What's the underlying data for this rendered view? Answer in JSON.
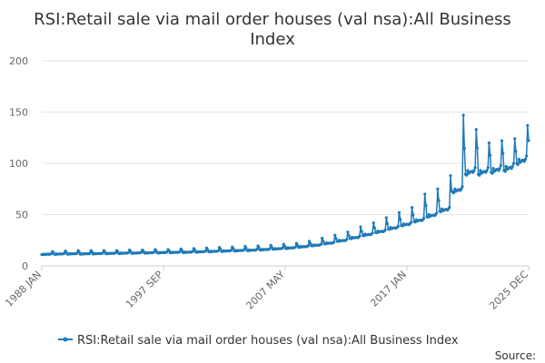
{
  "chart_data": {
    "type": "line",
    "title_line1": "RSI:Retail sale via mail order houses (val nsa):All Business",
    "title_line2": "Index",
    "source": "Source:",
    "y_ticks": [
      "0",
      "50",
      "100",
      "150",
      "200"
    ],
    "ylim": [
      0,
      200
    ],
    "x_ticks": [
      "1988 JAN",
      "1997 SEP",
      "2007 MAY",
      "2017 JAN",
      "2025 DEC"
    ],
    "x_range": [
      "1988-01",
      "2025-12"
    ],
    "grid": true,
    "legend_position": "bottom",
    "colors": {
      "series": "#1f7ab8",
      "grid": "#e6e6e6",
      "axis": "#cccccc"
    },
    "series": [
      {
        "name": "RSI:Retail sale via mail order houses (val nsa):All Business Index",
        "annual_base": [
          [
            "1988",
            11.5
          ],
          [
            "1989",
            11.8
          ],
          [
            "1990",
            12.0
          ],
          [
            "1991",
            12.0
          ],
          [
            "1992",
            12.2
          ],
          [
            "1993",
            12.4
          ],
          [
            "1994",
            12.6
          ],
          [
            "1995",
            12.8
          ],
          [
            "1996",
            13.0
          ],
          [
            "1997",
            13.2
          ],
          [
            "1998",
            13.4
          ],
          [
            "1999",
            13.6
          ],
          [
            "2000",
            14.0
          ],
          [
            "2001",
            14.4
          ],
          [
            "2002",
            14.8
          ],
          [
            "2003",
            15.2
          ],
          [
            "2004",
            15.6
          ],
          [
            "2005",
            16.2
          ],
          [
            "2006",
            17.0
          ],
          [
            "2007",
            17.8
          ],
          [
            "2008",
            19.0
          ],
          [
            "2009",
            20.5
          ],
          [
            "2010",
            22.5
          ],
          [
            "2011",
            25.0
          ],
          [
            "2012",
            28.0
          ],
          [
            "2013",
            31.0
          ],
          [
            "2014",
            34.0
          ],
          [
            "2015",
            37.5
          ],
          [
            "2016",
            41.0
          ],
          [
            "2017",
            45.0
          ],
          [
            "2018",
            50.0
          ],
          [
            "2019",
            55.5
          ],
          [
            "2020",
            75.0
          ],
          [
            "2021",
            93.0
          ],
          [
            "2022",
            93.0
          ],
          [
            "2023",
            95.0
          ],
          [
            "2024",
            97.0
          ],
          [
            "2025",
            104.0
          ]
        ],
        "november_peak": [
          [
            "1988",
            14
          ],
          [
            "1989",
            14.5
          ],
          [
            "1990",
            15
          ],
          [
            "1991",
            15
          ],
          [
            "1992",
            15
          ],
          [
            "1993",
            15
          ],
          [
            "1994",
            15.5
          ],
          [
            "1995",
            15.5
          ],
          [
            "1996",
            16
          ],
          [
            "1997",
            16
          ],
          [
            "1998",
            16.5
          ],
          [
            "1999",
            17
          ],
          [
            "2000",
            17.5
          ],
          [
            "2001",
            18
          ],
          [
            "2002",
            18.5
          ],
          [
            "2003",
            19
          ],
          [
            "2004",
            19.5
          ],
          [
            "2005",
            20
          ],
          [
            "2006",
            21
          ],
          [
            "2007",
            22
          ],
          [
            "2008",
            24
          ],
          [
            "2009",
            27
          ],
          [
            "2010",
            30
          ],
          [
            "2011",
            33
          ],
          [
            "2012",
            38
          ],
          [
            "2013",
            42
          ],
          [
            "2014",
            47
          ],
          [
            "2015",
            52
          ],
          [
            "2016",
            57
          ],
          [
            "2017",
            70
          ],
          [
            "2018",
            75
          ],
          [
            "2019",
            88
          ],
          [
            "2020",
            147
          ],
          [
            "2021",
            133
          ],
          [
            "2022",
            120
          ],
          [
            "2023",
            122
          ],
          [
            "2024",
            124
          ],
          [
            "2025",
            137
          ]
        ]
      }
    ]
  }
}
